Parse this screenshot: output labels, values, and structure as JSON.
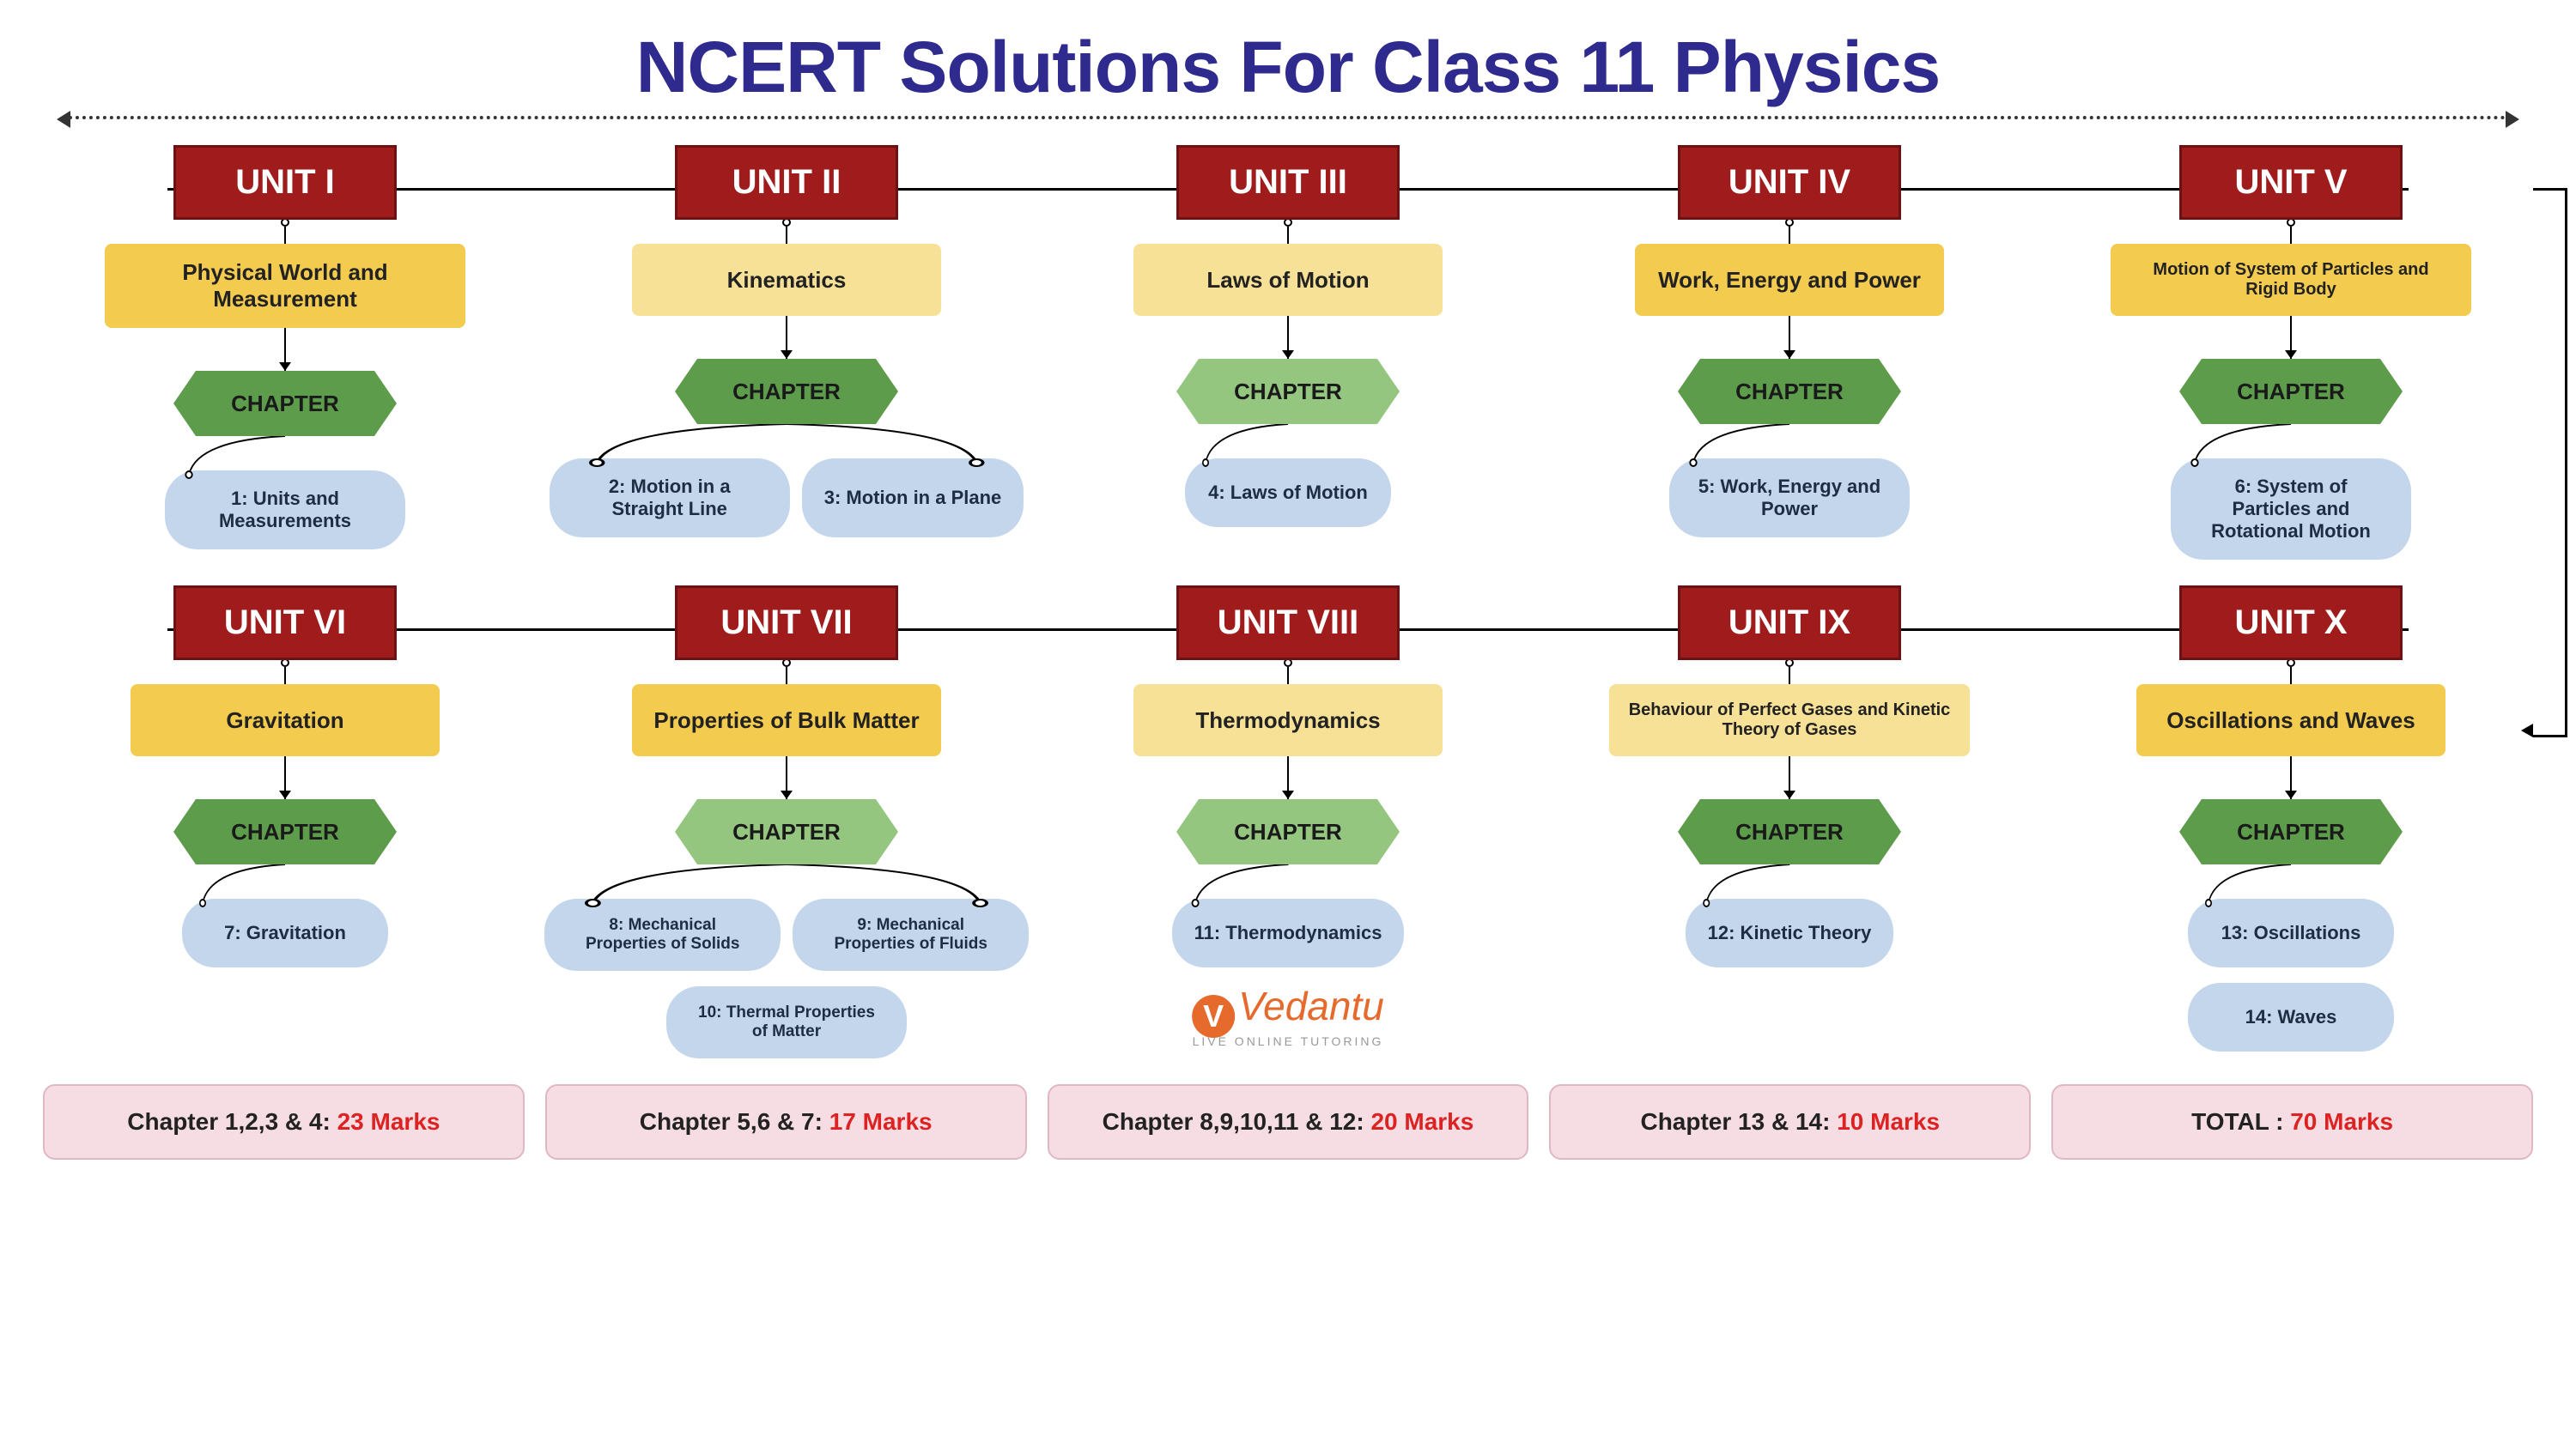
{
  "title": "NCERT Solutions For Class 11 Physics",
  "chapter_label": "CHAPTER",
  "colors": {
    "hex_dark": "#5c9c4a",
    "hex_light": "#94c680"
  },
  "rows": [
    [
      {
        "unit": "UNIT I",
        "topic": "Physical World and Measurement",
        "topic_style": "",
        "hex": "dark",
        "chapters": [
          {
            "t": "1: Units and Measurements"
          }
        ]
      },
      {
        "unit": "UNIT II",
        "topic": "Kinematics",
        "topic_style": "light",
        "hex": "dark",
        "chapters": [
          {
            "t": "2: Motion in a Straight Line"
          },
          {
            "t": "3: Motion in a Plane"
          }
        ]
      },
      {
        "unit": "UNIT III",
        "topic": "Laws of Motion",
        "topic_style": "light",
        "hex": "light",
        "chapters": [
          {
            "t": "4: Laws of Motion"
          }
        ]
      },
      {
        "unit": "UNIT IV",
        "topic": "Work, Energy and Power",
        "topic_style": "",
        "hex": "dark",
        "chapters": [
          {
            "t": "5: Work, Energy and Power"
          }
        ]
      },
      {
        "unit": "UNIT V",
        "topic": "Motion of System of Particles and Rigid Body",
        "topic_style": "small",
        "hex": "dark",
        "chapters": [
          {
            "t": "6: System of Particles and Rotational Motion"
          }
        ]
      }
    ],
    [
      {
        "unit": "UNIT VI",
        "topic": "Gravitation",
        "topic_style": "",
        "hex": "dark",
        "chapters": [
          {
            "t": "7: Gravitation"
          }
        ]
      },
      {
        "unit": "UNIT VII",
        "topic": "Properties of Bulk Matter",
        "topic_style": "",
        "hex": "light",
        "chapters": [
          {
            "t": "8: Mechanical Properties of Solids",
            "s": "small"
          },
          {
            "t": "9: Mechanical Properties of Fluids",
            "s": "small"
          },
          {
            "t": "10: Thermal Properties of Matter",
            "s": "small below"
          }
        ]
      },
      {
        "unit": "UNIT VIII",
        "topic": "Thermodynamics",
        "topic_style": "light",
        "hex": "light",
        "chapters": [
          {
            "t": "11: Thermodynamics"
          }
        ]
      },
      {
        "unit": "UNIT IX",
        "topic": "Behaviour of Perfect Gases and Kinetic Theory of Gases",
        "topic_style": "light small",
        "hex": "dark",
        "chapters": [
          {
            "t": "12: Kinetic Theory"
          }
        ]
      },
      {
        "unit": "UNIT X",
        "topic": "Oscillations and Waves",
        "topic_style": "",
        "hex": "dark",
        "chapters": [
          {
            "t": "13: Oscillations"
          },
          {
            "t": "14: Waves",
            "below": true
          }
        ]
      }
    ]
  ],
  "marks": [
    {
      "label": "Chapter 1,2,3 & 4: ",
      "val": "23 Marks"
    },
    {
      "label": "Chapter 5,6 & 7: ",
      "val": "17 Marks"
    },
    {
      "label": "Chapter 8,9,10,11 & 12: ",
      "val": "20 Marks"
    },
    {
      "label": "Chapter 13 & 14: ",
      "val": "10 Marks"
    },
    {
      "label": "TOTAL : ",
      "val": "70 Marks"
    }
  ],
  "logo": {
    "name": "Vedantu",
    "tagline": "LIVE ONLINE TUTORING"
  }
}
